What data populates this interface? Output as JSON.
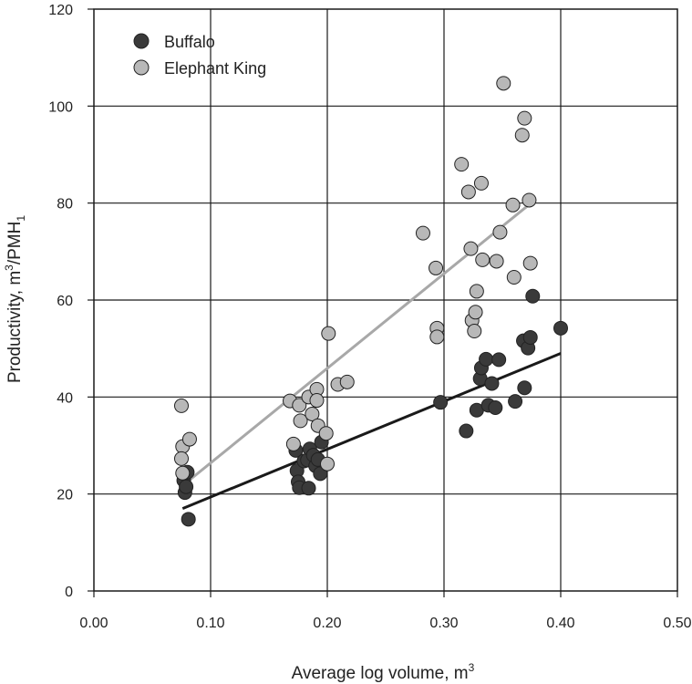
{
  "chart_data": {
    "type": "scatter",
    "xlabel": "Average log volume, m",
    "xlabel_sup": "3",
    "ylabel_main": "Productivity, m",
    "ylabel_sup": "3",
    "ylabel_mid": "/PMH",
    "ylabel_sub": "1",
    "xlim": [
      0,
      0.5
    ],
    "ylim": [
      0,
      120
    ],
    "x_ticks": [
      "0.00",
      "0.10",
      "0.20",
      "0.30",
      "0.40",
      "0.50"
    ],
    "y_ticks": [
      "0",
      "20",
      "40",
      "60",
      "80",
      "100",
      "120"
    ],
    "x_tick_values": [
      0,
      0.1,
      0.2,
      0.3,
      0.4,
      0.5
    ],
    "y_tick_values": [
      0,
      20,
      40,
      60,
      80,
      100,
      120
    ],
    "grid": true,
    "legend_position": "top-left",
    "series": [
      {
        "name": "Buffalo",
        "color": "#3a3a3a",
        "trend": {
          "x": [
            0.076,
            0.4
          ],
          "y": [
            17,
            49
          ],
          "color": "#1a1a1a"
        },
        "points": [
          [
            0.077,
            22.8
          ],
          [
            0.078,
            20.3
          ],
          [
            0.079,
            21.5
          ],
          [
            0.08,
            24.5
          ],
          [
            0.081,
            14.8
          ],
          [
            0.173,
            29.0
          ],
          [
            0.174,
            24.8
          ],
          [
            0.175,
            22.5
          ],
          [
            0.176,
            21.3
          ],
          [
            0.18,
            26.8
          ],
          [
            0.183,
            27.0
          ],
          [
            0.184,
            21.2
          ],
          [
            0.185,
            29.3
          ],
          [
            0.188,
            28.0
          ],
          [
            0.19,
            25.8
          ],
          [
            0.192,
            27.1
          ],
          [
            0.194,
            24.2
          ],
          [
            0.195,
            30.7
          ],
          [
            0.297,
            38.9
          ],
          [
            0.319,
            33.0
          ],
          [
            0.328,
            37.3
          ],
          [
            0.331,
            43.8
          ],
          [
            0.332,
            46.0
          ],
          [
            0.336,
            47.8
          ],
          [
            0.338,
            38.3
          ],
          [
            0.341,
            42.8
          ],
          [
            0.344,
            37.8
          ],
          [
            0.347,
            47.7
          ],
          [
            0.361,
            39.1
          ],
          [
            0.368,
            51.6
          ],
          [
            0.369,
            41.9
          ],
          [
            0.372,
            50.1
          ],
          [
            0.374,
            52.3
          ],
          [
            0.376,
            60.8
          ],
          [
            0.4,
            54.2
          ]
        ]
      },
      {
        "name": "Elephant King",
        "color": "#b8b8b8",
        "trend": {
          "x": [
            0.08,
            0.372
          ],
          "y": [
            22.5,
            79.5
          ],
          "color": "#a8a8a8"
        },
        "points": [
          [
            0.075,
            38.2
          ],
          [
            0.076,
            29.8
          ],
          [
            0.075,
            27.3
          ],
          [
            0.076,
            24.3
          ],
          [
            0.082,
            31.3
          ],
          [
            0.168,
            39.2
          ],
          [
            0.171,
            30.3
          ],
          [
            0.176,
            38.3
          ],
          [
            0.177,
            35.1
          ],
          [
            0.184,
            40.0
          ],
          [
            0.187,
            36.5
          ],
          [
            0.191,
            41.6
          ],
          [
            0.191,
            39.3
          ],
          [
            0.192,
            34.1
          ],
          [
            0.199,
            32.5
          ],
          [
            0.2,
            26.2
          ],
          [
            0.201,
            53.1
          ],
          [
            0.209,
            42.6
          ],
          [
            0.217,
            43.1
          ],
          [
            0.282,
            73.8
          ],
          [
            0.293,
            66.6
          ],
          [
            0.294,
            54.2
          ],
          [
            0.294,
            52.4
          ],
          [
            0.315,
            88.0
          ],
          [
            0.321,
            82.3
          ],
          [
            0.323,
            70.6
          ],
          [
            0.324,
            55.8
          ],
          [
            0.326,
            53.6
          ],
          [
            0.327,
            57.5
          ],
          [
            0.328,
            61.8
          ],
          [
            0.332,
            84.1
          ],
          [
            0.333,
            68.3
          ],
          [
            0.345,
            68.0
          ],
          [
            0.348,
            74.0
          ],
          [
            0.351,
            104.7
          ],
          [
            0.359,
            79.6
          ],
          [
            0.36,
            64.7
          ],
          [
            0.367,
            94.0
          ],
          [
            0.369,
            97.5
          ],
          [
            0.373,
            80.6
          ],
          [
            0.374,
            67.6
          ]
        ]
      }
    ]
  }
}
